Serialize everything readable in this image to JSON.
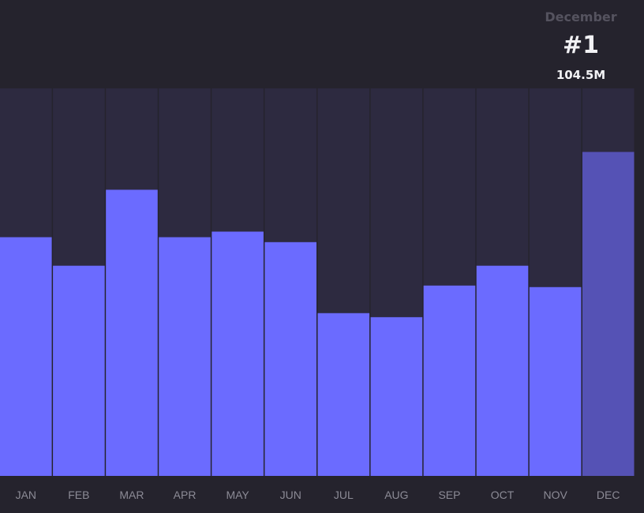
{
  "header": {
    "month": "December",
    "rank": "#1",
    "value": "104.5M"
  },
  "colors": {
    "background": "#25232d",
    "track": "#2d2a40",
    "bar": "#6b6bff",
    "highlight": "#5552b5",
    "label": "#8c8b96"
  },
  "chart_data": {
    "type": "bar",
    "categories": [
      "JAN",
      "FEB",
      "MAR",
      "APR",
      "MAY",
      "JUN",
      "JUL",
      "AUG",
      "SEP",
      "OCT",
      "NOV",
      "DEC"
    ],
    "values": [
      77.0,
      67.8,
      92.3,
      77.0,
      78.8,
      75.4,
      52.5,
      51.2,
      61.4,
      67.8,
      60.9,
      104.5
    ],
    "unit": "M",
    "ylim": [
      0,
      125
    ],
    "highlighted": "DEC",
    "title": "",
    "xlabel": "",
    "ylabel": "",
    "grid": false
  }
}
